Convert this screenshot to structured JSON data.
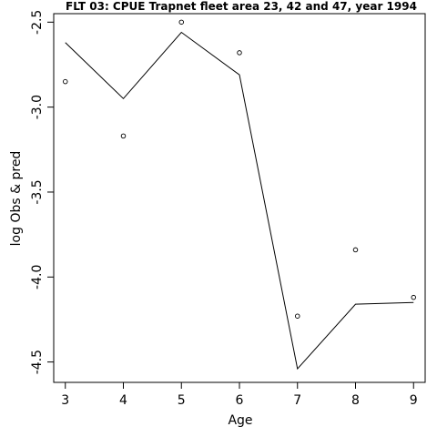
{
  "chart_data": {
    "type": "line",
    "title": "FLT 03: CPUE Trapnet fleet area 23, 42 and 47, year 1994",
    "xlabel": "Age",
    "ylabel": "log Obs & pred",
    "x": [
      3,
      4,
      5,
      6,
      7,
      8,
      9
    ],
    "xlim": [
      2.8,
      9.2
    ],
    "ylim": [
      -4.62,
      -2.45
    ],
    "xticks": [
      3,
      4,
      5,
      6,
      7,
      8,
      9
    ],
    "yticks": [
      -2.5,
      -3.0,
      -3.5,
      -4.0,
      -4.5
    ],
    "ytick_labels": [
      "-2.5",
      "-3.0",
      "-3.5",
      "-4.0",
      "-4.5"
    ],
    "grid": false,
    "series": [
      {
        "kind": "points",
        "marker": "open-circle",
        "values": [
          -2.85,
          -3.17,
          -2.5,
          -2.68,
          -4.23,
          -3.84,
          -4.12
        ]
      },
      {
        "kind": "line",
        "values": [
          -2.62,
          -2.95,
          -2.56,
          -2.81,
          -4.54,
          -4.16,
          -4.15
        ]
      }
    ]
  }
}
